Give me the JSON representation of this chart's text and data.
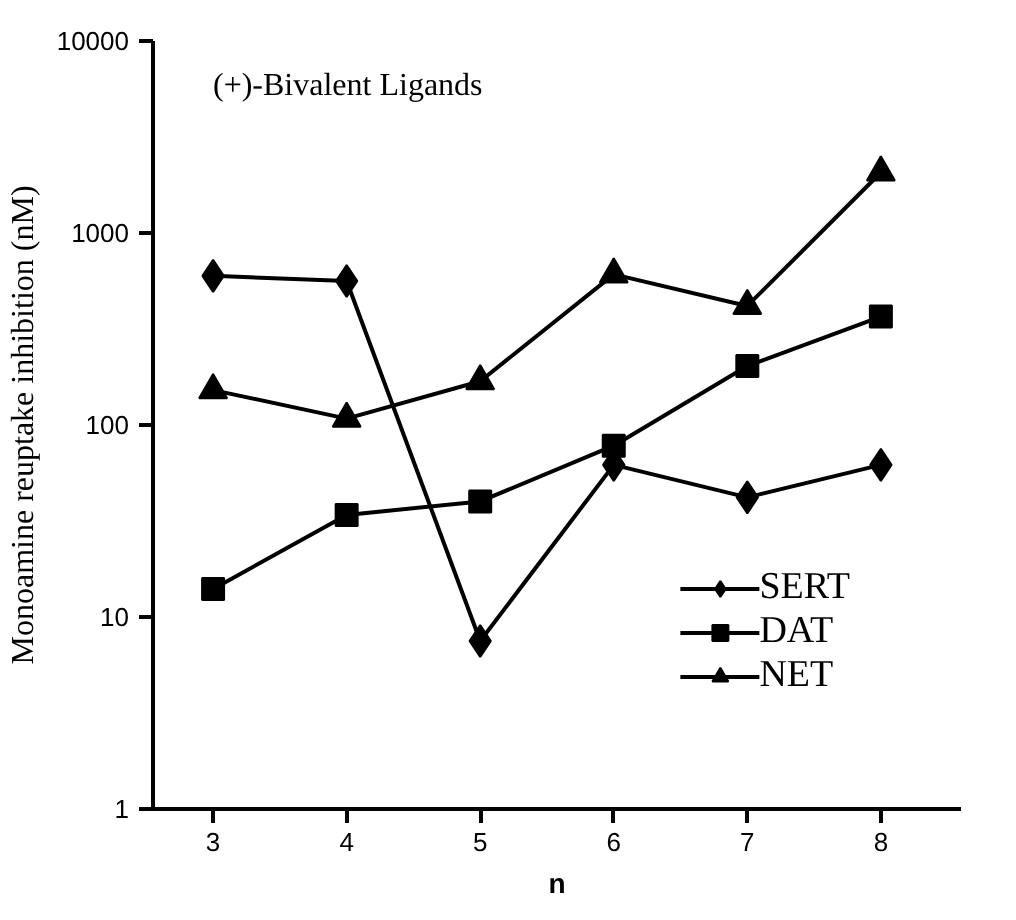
{
  "chart_data": {
    "type": "line",
    "annotations": [
      "(+)-Bivalent Ligands"
    ],
    "xlabel": "n",
    "ylabel": "Monoamine reuptake inhibition (nM)",
    "x": [
      3,
      4,
      5,
      6,
      7,
      8
    ],
    "xlim": [
      2.55,
      8.6
    ],
    "xticks": [
      3,
      4,
      5,
      6,
      7,
      8
    ],
    "ylim": [
      1,
      10000
    ],
    "yticks": [
      1,
      10,
      100,
      1000,
      10000
    ],
    "log": "y",
    "grid": false,
    "legend": "bottom right",
    "series": [
      {
        "name": "SERT",
        "color": "#000000",
        "marker": "diamond",
        "values": [
          598,
          562,
          7.5,
          62,
          42,
          62
        ]
      },
      {
        "name": "DAT",
        "color": "#000000",
        "marker": "square",
        "values": [
          14,
          34,
          40,
          78,
          203,
          367
        ]
      },
      {
        "name": "NET",
        "color": "#000000",
        "marker": "triangle",
        "values": [
          152,
          108,
          169,
          609,
          417,
          2065
        ]
      }
    ]
  }
}
